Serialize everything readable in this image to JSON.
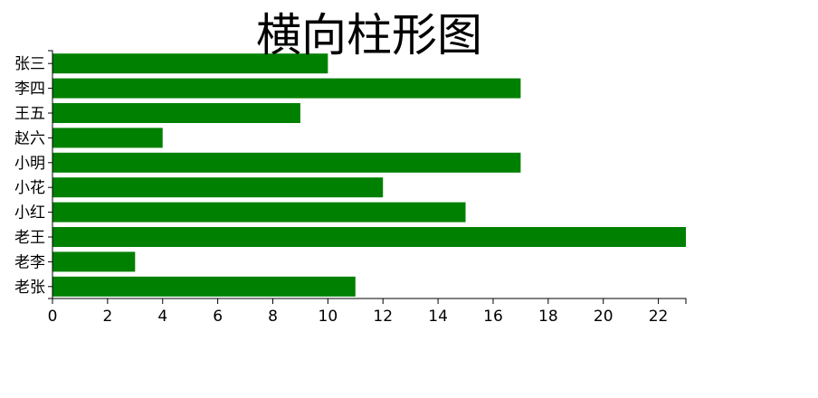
{
  "chart_data": {
    "type": "bar",
    "orientation": "horizontal",
    "title": "横向柱形图",
    "categories": [
      "张三",
      "李四",
      "王五",
      "赵六",
      "小明",
      "小花",
      "小红",
      "老王",
      "老李",
      "老张"
    ],
    "values": [
      10,
      17,
      9,
      4,
      17,
      12,
      15,
      23,
      3,
      11
    ],
    "xlim": [
      0,
      23
    ],
    "xticks": [
      0,
      2,
      4,
      6,
      8,
      10,
      12,
      14,
      16,
      18,
      20,
      22
    ],
    "bar_color": "#008000",
    "grid": false,
    "legend": "none"
  }
}
